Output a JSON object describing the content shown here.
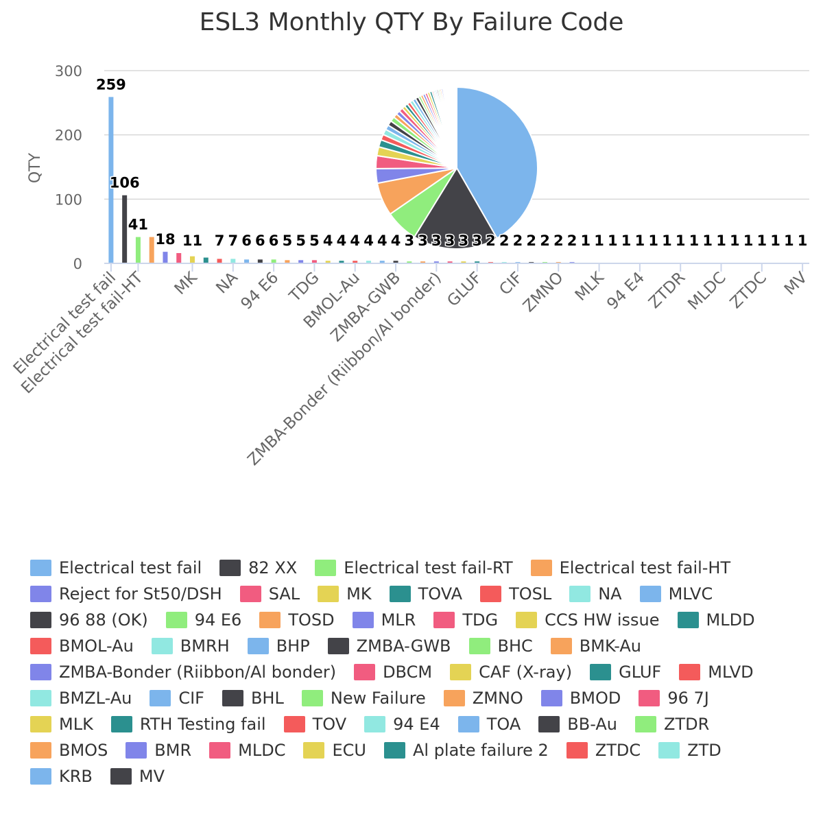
{
  "chart_data": {
    "type": "bar",
    "title": "ESL3 Monthly QTY By Failure Code",
    "ylabel": "QTY",
    "xlabel": "",
    "ylim": [
      0,
      300
    ],
    "yticks": [
      0,
      100,
      200,
      300
    ],
    "grid": true,
    "legend_position": "bottom",
    "pie_inset": true,
    "categories": [
      "Electrical test fail",
      "82 XX",
      "Electrical test fail-RT",
      "Electrical test fail-HT",
      "Reject for St50/DSH",
      "SAL",
      "MK",
      "TOVA",
      "TOSL",
      "NA",
      "MLVC",
      "96 88 (OK)",
      "94 E6",
      "TOSD",
      "MLR",
      "TDG",
      "CCS HW issue",
      "MLDD",
      "BMOL-Au",
      "BMRH",
      "BHP",
      "ZMBA-GWB",
      "BHC",
      "BMK-Au",
      "ZMBA-Bonder (Riibbon/Al bonder)",
      "DBCM",
      "CAF (X-ray)",
      "GLUF",
      "MLVD",
      "BMZL-Au",
      "CIF",
      "BHL",
      "New Failure",
      "ZMNO",
      "BMOD",
      "96 7J",
      "MLK",
      "RTH Testing fail",
      "TOV",
      "94 E4",
      "TOA",
      "BB-Au",
      "ZTDR",
      "BMOS",
      "BMR",
      "MLDC",
      "ECU",
      "Al plate failure 2",
      "ZTDC",
      "ZTD",
      "KRB",
      "MV"
    ],
    "values": [
      259,
      106,
      41,
      41,
      18,
      16,
      11,
      9,
      7,
      7,
      6,
      6,
      6,
      5,
      5,
      5,
      4,
      4,
      4,
      4,
      4,
      4,
      3,
      3,
      3,
      3,
      3,
      3,
      2,
      2,
      2,
      2,
      2,
      2,
      2,
      1,
      1,
      1,
      1,
      1,
      1,
      1,
      1,
      1,
      1,
      1,
      1,
      1,
      1,
      1,
      1,
      1
    ],
    "data_labels": [
      "259",
      "106",
      "41",
      "",
      "18",
      "",
      "11",
      "",
      "7",
      "7",
      "6",
      "6",
      "6",
      "5",
      "5",
      "5",
      "4",
      "4",
      "4",
      "4",
      "4",
      "4",
      "3",
      "3",
      "3",
      "3",
      "3",
      "3",
      "2",
      "2",
      "2",
      "2",
      "2",
      "2",
      "2",
      "1",
      "1",
      "1",
      "1",
      "1",
      "1",
      "1",
      "1",
      "1",
      "1",
      "1",
      "1",
      "1",
      "1",
      "1",
      "1",
      "1"
    ],
    "tick_labels": [
      "Electrical test fail",
      "",
      "Electrical test fail-HT",
      "",
      "",
      "",
      "MK",
      "",
      "",
      "NA",
      "",
      "",
      "94 E6",
      "",
      "",
      "TDG",
      "",
      "",
      "BMOL-Au",
      "",
      "",
      "ZMBA-GWB",
      "",
      "",
      "ZMBA-Bonder (Riibbon/Al bonder)",
      "",
      "",
      "GLUF",
      "",
      "",
      "CIF",
      "",
      "",
      "ZMNO",
      "",
      "",
      "MLK",
      "",
      "",
      "94 E4",
      "",
      "",
      "ZTDR",
      "",
      "",
      "MLDC",
      "",
      "",
      "ZTDC",
      "",
      "",
      "MV"
    ],
    "colors": [
      "#7cb5ec",
      "#434348",
      "#90ed7d",
      "#f7a35c",
      "#8085e9",
      "#f15c80",
      "#e4d354",
      "#2b908f",
      "#f45b5b",
      "#91e8e1"
    ]
  }
}
